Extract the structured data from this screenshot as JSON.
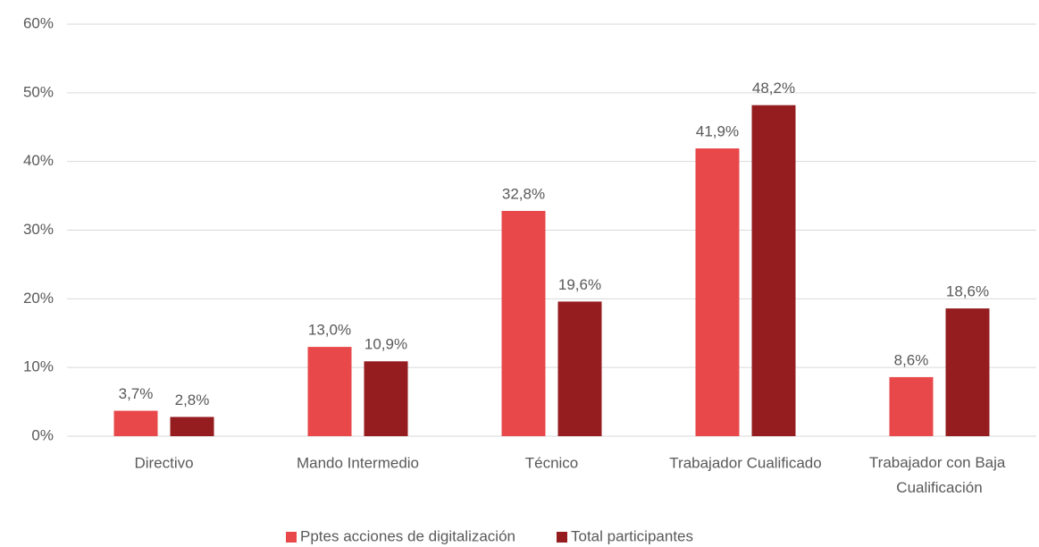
{
  "chart_data": {
    "type": "bar",
    "categories": [
      "Directivo",
      "Mando Intermedio",
      "Técnico",
      "Trabajador Cualificado",
      "Trabajador con Baja Cualificación"
    ],
    "series": [
      {
        "name": "Pptes acciones de digitalización",
        "color": "#e84849",
        "values": [
          3.7,
          13.0,
          32.8,
          41.9,
          8.6
        ],
        "value_labels": [
          "3,7%",
          "13,0%",
          "32,8%",
          "41,9%",
          "8,6%"
        ]
      },
      {
        "name": "Total participantes",
        "color": "#951c1f",
        "values": [
          2.8,
          10.9,
          19.6,
          48.2,
          18.6
        ],
        "value_labels": [
          "2,8%",
          "10,9%",
          "19,6%",
          "48,2%",
          "18,6%"
        ]
      }
    ],
    "ylim": [
      0,
      60
    ],
    "yticks": [
      {
        "value": 0,
        "label": "0%"
      },
      {
        "value": 10,
        "label": "10%"
      },
      {
        "value": 20,
        "label": "20%"
      },
      {
        "value": 30,
        "label": "30%"
      },
      {
        "value": 40,
        "label": "40%"
      },
      {
        "value": 50,
        "label": "50%"
      },
      {
        "value": 60,
        "label": "60%"
      }
    ],
    "grid": true,
    "legend": "bottom"
  }
}
